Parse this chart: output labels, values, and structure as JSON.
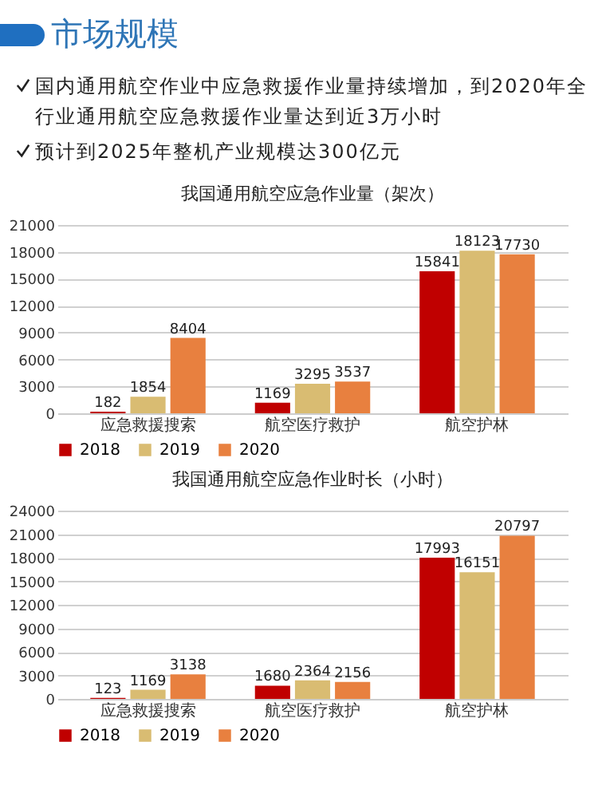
{
  "chart_data": [
    {
      "type": "other",
      "title": "市场规模",
      "annotations": [
        "国内通用航空作业中应急救援作业量持续增加，到2020年全行业通用航空应急救援作业量达到近3万小时",
        "预计到2025年整机产业规模达300亿元"
      ]
    },
    {
      "type": "bar",
      "title": "我国通用航空应急作业量（架次）",
      "categories": [
        "应急救援搜索",
        "航空医疗救护",
        "航空护林"
      ],
      "series": [
        {
          "name": "2018",
          "color": "#c00000",
          "values": [
            182,
            1169,
            15841
          ]
        },
        {
          "name": "2019",
          "color": "#d9bc72",
          "values": [
            1854,
            3295,
            18123
          ]
        },
        {
          "name": "2020",
          "color": "#e8803f",
          "values": [
            8404,
            3537,
            17730
          ]
        }
      ],
      "ylim": [
        0,
        21000
      ],
      "yticks": [
        0,
        3000,
        6000,
        9000,
        12000,
        15000,
        18000,
        21000
      ],
      "grid": "y",
      "legend": "bottom",
      "data_labels": true
    },
    {
      "type": "bar",
      "title": "我国通用航空应急作业时长（小时）",
      "categories": [
        "应急救援搜索",
        "航空医疗救护",
        "航空护林"
      ],
      "series": [
        {
          "name": "2018",
          "color": "#c00000",
          "values": [
            123,
            1680,
            17993
          ]
        },
        {
          "name": "2019",
          "color": "#d9bc72",
          "values": [
            1169,
            2364,
            16151
          ]
        },
        {
          "name": "2020",
          "color": "#e8803f",
          "values": [
            3138,
            2156,
            20797
          ]
        }
      ],
      "ylim": [
        0,
        24000
      ],
      "yticks": [
        0,
        3000,
        6000,
        9000,
        12000,
        15000,
        18000,
        21000,
        24000
      ],
      "grid": "y",
      "legend": "bottom",
      "data_labels": true
    }
  ]
}
